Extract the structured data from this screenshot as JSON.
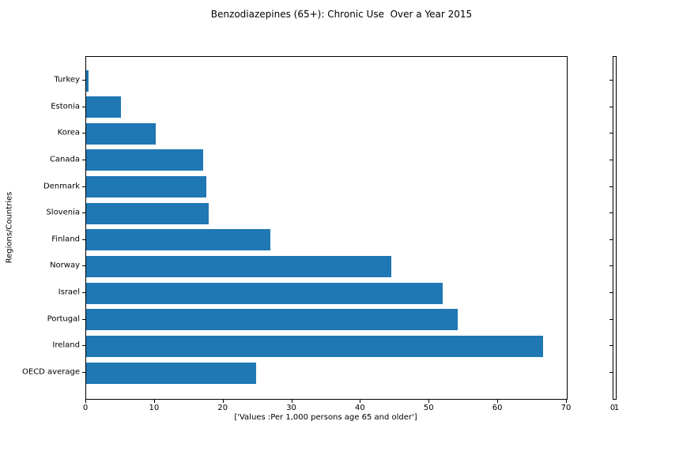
{
  "chart_data": {
    "type": "bar",
    "orientation": "horizontal",
    "title": "Benzodiazepines (65+): Chronic Use  Over a Year 2015",
    "xlabel": "['Values :Per 1,000 persons age 65 and older']",
    "ylabel": "Regions/Countries",
    "categories": [
      "Turkey",
      "Estonia",
      "Korea",
      "Canada",
      "Denmark",
      "Slovenia",
      "Finland",
      "Norway",
      "Israel",
      "Portugal",
      "Ireland",
      "OECD average"
    ],
    "values": [
      0.3,
      5.1,
      10.1,
      17.0,
      17.5,
      17.9,
      26.8,
      44.4,
      51.9,
      54.1,
      66.6,
      24.8
    ],
    "xlim": [
      0,
      70
    ],
    "x_ticks": [
      "0",
      "10",
      "20",
      "30",
      "40",
      "50",
      "60",
      "70"
    ],
    "bar_color": "#1f77b4",
    "grid": false,
    "legend": null
  },
  "secondary_axis": {
    "xlim": [
      0,
      1
    ],
    "x_tick_labels": [
      "0",
      "1"
    ]
  }
}
